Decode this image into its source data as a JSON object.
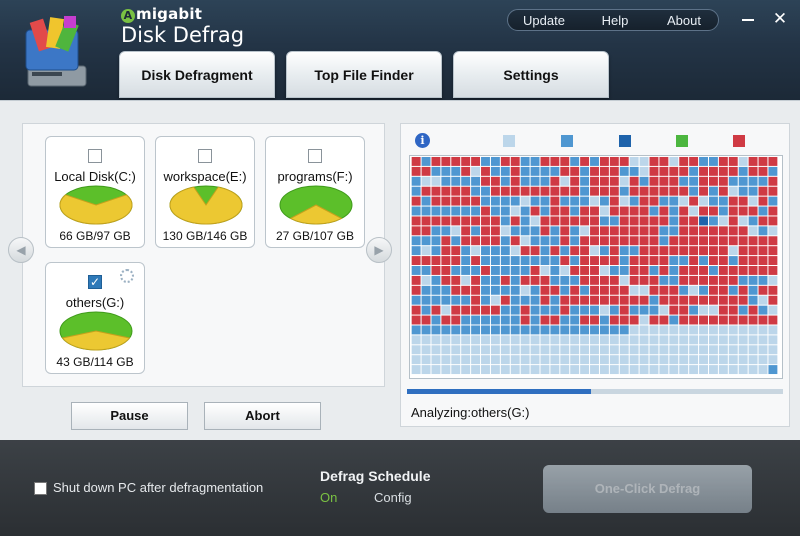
{
  "header": {
    "brand": "migabit",
    "brand_initial": "A",
    "title": "Disk Defrag",
    "menu": {
      "update": "Update",
      "help": "Help",
      "about": "About"
    },
    "tabs": [
      "Disk Defragment",
      "Top File Finder",
      "Settings"
    ]
  },
  "drives": [
    {
      "name": "Local Disk(C:)",
      "size": "66 GB/97 GB",
      "checked": false,
      "used_fraction": 0.68
    },
    {
      "name": "workspace(E:)",
      "size": "130 GB/146 GB",
      "checked": false,
      "used_fraction": 0.89
    },
    {
      "name": "programs(F:)",
      "size": "27 GB/107 GB",
      "checked": false,
      "used_fraction": 0.25
    },
    {
      "name": "others(G:)",
      "size": "43 GB/114 GB",
      "checked": true,
      "used_fraction": 0.38
    }
  ],
  "buttons": {
    "pause": "Pause",
    "abort": "Abort"
  },
  "status": "Analyzing:others(G:)",
  "progress": 0.49,
  "colors": {
    "free": "#bcd6ea",
    "contiguous": "#4f97d1",
    "optimized": "#1e63ab",
    "processing": "#4cb63f",
    "fragmented": "#cf3a44",
    "used": "#ecc832",
    "free_space_pie": "#5cbf2a"
  },
  "footer": {
    "shutdown_label": "Shut down PC after defragmentation",
    "schedule_title": "Defrag Schedule",
    "schedule_on": "On",
    "schedule_config": "Config",
    "oneclick": "One-Click Defrag"
  }
}
